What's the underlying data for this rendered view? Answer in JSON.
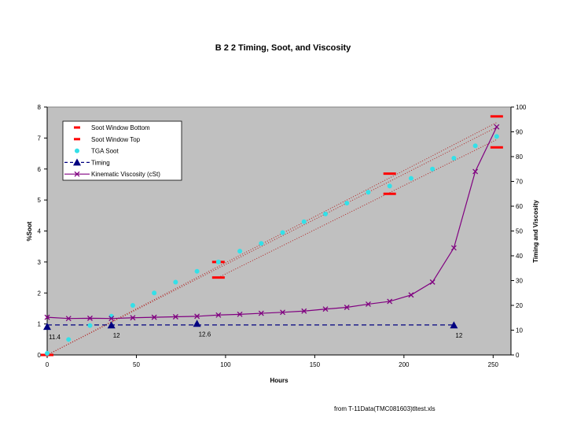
{
  "chart_data": {
    "type": "line",
    "title": "B 2 2 Timing, Soot, and Viscosity",
    "xlabel": "Hours",
    "ylabel": "%Soot",
    "y2label": "Timing and Viscosity",
    "xlim": [
      0,
      260
    ],
    "ylim": [
      0,
      8
    ],
    "y2lim": [
      0,
      100
    ],
    "xticks": [
      0,
      50,
      100,
      150,
      200,
      250
    ],
    "yticks": [
      0,
      1,
      2,
      3,
      4,
      5,
      6,
      7,
      8
    ],
    "y2ticks": [
      0,
      10,
      20,
      30,
      40,
      50,
      60,
      70,
      80,
      90,
      100
    ],
    "grid": false,
    "legend_position": "top-left",
    "plot_background": "#c0c0c0",
    "series": [
      {
        "name": "Soot Window Bottom",
        "axis": "left",
        "marker": "dash",
        "color": "#ff0000",
        "x": [
          0,
          96,
          192,
          252
        ],
        "y": [
          0.0,
          2.5,
          5.2,
          6.7
        ]
      },
      {
        "name": "Soot Window Top",
        "axis": "left",
        "marker": "dash",
        "color": "#ff0000",
        "x": [
          0,
          96,
          192,
          252
        ],
        "y": [
          0.0,
          3.0,
          5.85,
          7.7
        ]
      },
      {
        "name": "TGA Soot",
        "axis": "left",
        "marker": "circle",
        "color": "#33e0e8",
        "x": [
          0,
          12,
          24,
          36,
          48,
          60,
          72,
          84,
          96,
          108,
          120,
          132,
          144,
          156,
          168,
          180,
          192,
          204,
          216,
          228,
          240,
          252
        ],
        "y": [
          0.05,
          0.5,
          0.95,
          1.25,
          1.6,
          2.0,
          2.35,
          2.7,
          3.0,
          3.35,
          3.6,
          3.95,
          4.3,
          4.55,
          4.9,
          5.25,
          5.45,
          5.7,
          6.0,
          6.35,
          6.75,
          7.05
        ]
      },
      {
        "name": "Timing",
        "axis": "right",
        "marker": "triangle",
        "color": "#000080",
        "x": [
          0,
          36,
          84,
          228
        ],
        "y": [
          11.4,
          12,
          12.6,
          12
        ]
      },
      {
        "name": "Kinematic Viscosity (cSt)",
        "axis": "right",
        "marker": "x",
        "color": "#800080",
        "x": [
          0,
          12,
          24,
          36,
          48,
          60,
          72,
          84,
          96,
          108,
          120,
          132,
          144,
          156,
          168,
          180,
          192,
          204,
          216,
          228,
          240,
          252
        ],
        "y": [
          15.2,
          14.7,
          14.8,
          14.7,
          15.0,
          15.2,
          15.4,
          15.6,
          16.1,
          16.4,
          16.8,
          17.2,
          17.7,
          18.5,
          19.2,
          20.5,
          21.6,
          24.2,
          29.4,
          43.2,
          74.0,
          92.0
        ]
      }
    ],
    "trendlines": [
      {
        "series": "TGA Soot",
        "color": "#b22222",
        "x": [
          0,
          252
        ],
        "y": [
          0.0,
          7.35
        ]
      },
      {
        "series": "Soot Window Top",
        "color": "#b22222",
        "x": [
          0,
          252
        ],
        "y": [
          0.0,
          7.5
        ]
      },
      {
        "series": "Soot Window Bottom",
        "color": "#b22222",
        "x": [
          96,
          252
        ],
        "y": [
          2.5,
          6.95
        ]
      },
      {
        "series": "Timing",
        "color": "#000080",
        "x": [
          0,
          228
        ],
        "y": [
          12.1,
          12.1
        ]
      }
    ],
    "annotations": [
      {
        "text": "11.4",
        "x": 0,
        "y2": 11.4
      },
      {
        "text": "12",
        "x": 36,
        "y2": 12
      },
      {
        "text": "12.6",
        "x": 84,
        "y2": 12.6
      },
      {
        "text": "12",
        "x": 228,
        "y2": 12
      }
    ]
  },
  "footer": {
    "source": "from T-11Data(TMC081603)tltest.xls"
  }
}
